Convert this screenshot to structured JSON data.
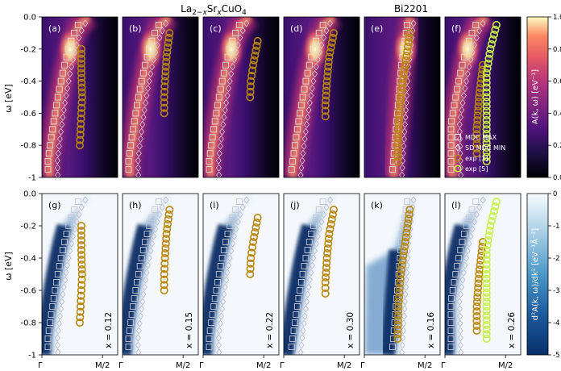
{
  "groups": {
    "lsco": "La$_{2-x}$Sr$_x$CuO$_4$",
    "bi": "Bi2201"
  },
  "axes": {
    "ylabel_top": "ω [eV]",
    "ylabel_bottom": "ω [eV]",
    "x_ticks": [
      "Γ",
      "M/2"
    ],
    "y_ticks": [
      "0.0",
      "-0.2",
      "-0.4",
      "-0.6",
      "-0.8",
      "-1"
    ]
  },
  "panels": [
    {
      "label_top": "(a)",
      "label_bottom": "(g)",
      "doping": "x = 0.12"
    },
    {
      "label_top": "(b)",
      "label_bottom": "(h)",
      "doping": "x = 0.15"
    },
    {
      "label_top": "(c)",
      "label_bottom": "(i)",
      "doping": "x = 0.22"
    },
    {
      "label_top": "(d)",
      "label_bottom": "(j)",
      "doping": "x = 0.30"
    },
    {
      "label_top": "(e)",
      "label_bottom": "(k)",
      "doping": "x = 0.16"
    },
    {
      "label_top": "(f)",
      "label_bottom": "(l)",
      "doping": "x = 0.26"
    }
  ],
  "legend": [
    "MDC MAX",
    "SD MDC MIN",
    "exp [2]",
    "exp [5]"
  ],
  "colorbars": {
    "top": {
      "label": "A(k, ω) [eV⁻¹]",
      "ticks": [
        "0.0",
        "0.2",
        "0.4",
        "0.6",
        "0.8",
        "1.0"
      ],
      "range": [
        0,
        1
      ]
    },
    "bottom": {
      "label": "d²A(k, ω)/dk² [eV⁻¹Å⁻²]",
      "ticks": [
        "-5",
        "-4",
        "-3",
        "-2",
        "-1",
        "0"
      ],
      "range": [
        -5,
        0
      ]
    }
  },
  "colors": {
    "exp2": "#b8860b",
    "exp5": "#c8f04a",
    "mdc_max": "#e0e0e0",
    "sd_min": "#d0d0e0"
  },
  "chart_data": {
    "type": "heatmap",
    "xlim_note": "Γ to M/2",
    "ylim": [
      -1,
      0
    ],
    "panels": [
      {
        "id": "a",
        "material": "LSCO",
        "doping": 0.12,
        "exp2": [
          [
            0.52,
            -0.2
          ],
          [
            0.52,
            -0.35
          ],
          [
            0.53,
            -0.5
          ],
          [
            0.52,
            -0.6
          ],
          [
            0.51,
            -0.7
          ],
          [
            0.5,
            -0.8
          ]
        ],
        "exp2_k_range": "approx"
      },
      {
        "id": "b",
        "material": "LSCO",
        "doping": 0.15,
        "exp2": [
          [
            0.62,
            -0.1
          ],
          [
            0.58,
            -0.25
          ],
          [
            0.56,
            -0.4
          ],
          [
            0.55,
            -0.5
          ],
          [
            0.55,
            -0.6
          ]
        ]
      },
      {
        "id": "c",
        "material": "LSCO",
        "doping": 0.22,
        "exp2": [
          [
            0.72,
            -0.15
          ],
          [
            0.66,
            -0.3
          ],
          [
            0.63,
            -0.4
          ],
          [
            0.62,
            -0.5
          ]
        ]
      },
      {
        "id": "d",
        "material": "LSCO",
        "doping": 0.3,
        "exp2": [
          [
            0.66,
            -0.1
          ],
          [
            0.6,
            -0.25
          ],
          [
            0.57,
            -0.4
          ],
          [
            0.55,
            -0.55
          ],
          [
            0.55,
            -0.62
          ]
        ]
      },
      {
        "id": "e",
        "material": "Bi2201",
        "doping": 0.16,
        "exp2": [
          [
            0.6,
            -0.1
          ],
          [
            0.54,
            -0.3
          ],
          [
            0.48,
            -0.5
          ],
          [
            0.45,
            -0.7
          ],
          [
            0.44,
            -0.9
          ]
        ]
      },
      {
        "id": "f",
        "material": "Bi2201",
        "doping": 0.26,
        "exp2": [
          [
            0.5,
            -0.3
          ],
          [
            0.45,
            -0.5
          ],
          [
            0.42,
            -0.7
          ],
          [
            0.42,
            -0.85
          ]
        ],
        "exp5": [
          [
            0.68,
            -0.05
          ],
          [
            0.6,
            -0.2
          ],
          [
            0.55,
            -0.35
          ],
          [
            0.55,
            -0.5
          ],
          [
            0.55,
            -0.7
          ],
          [
            0.55,
            -0.9
          ]
        ]
      }
    ]
  }
}
